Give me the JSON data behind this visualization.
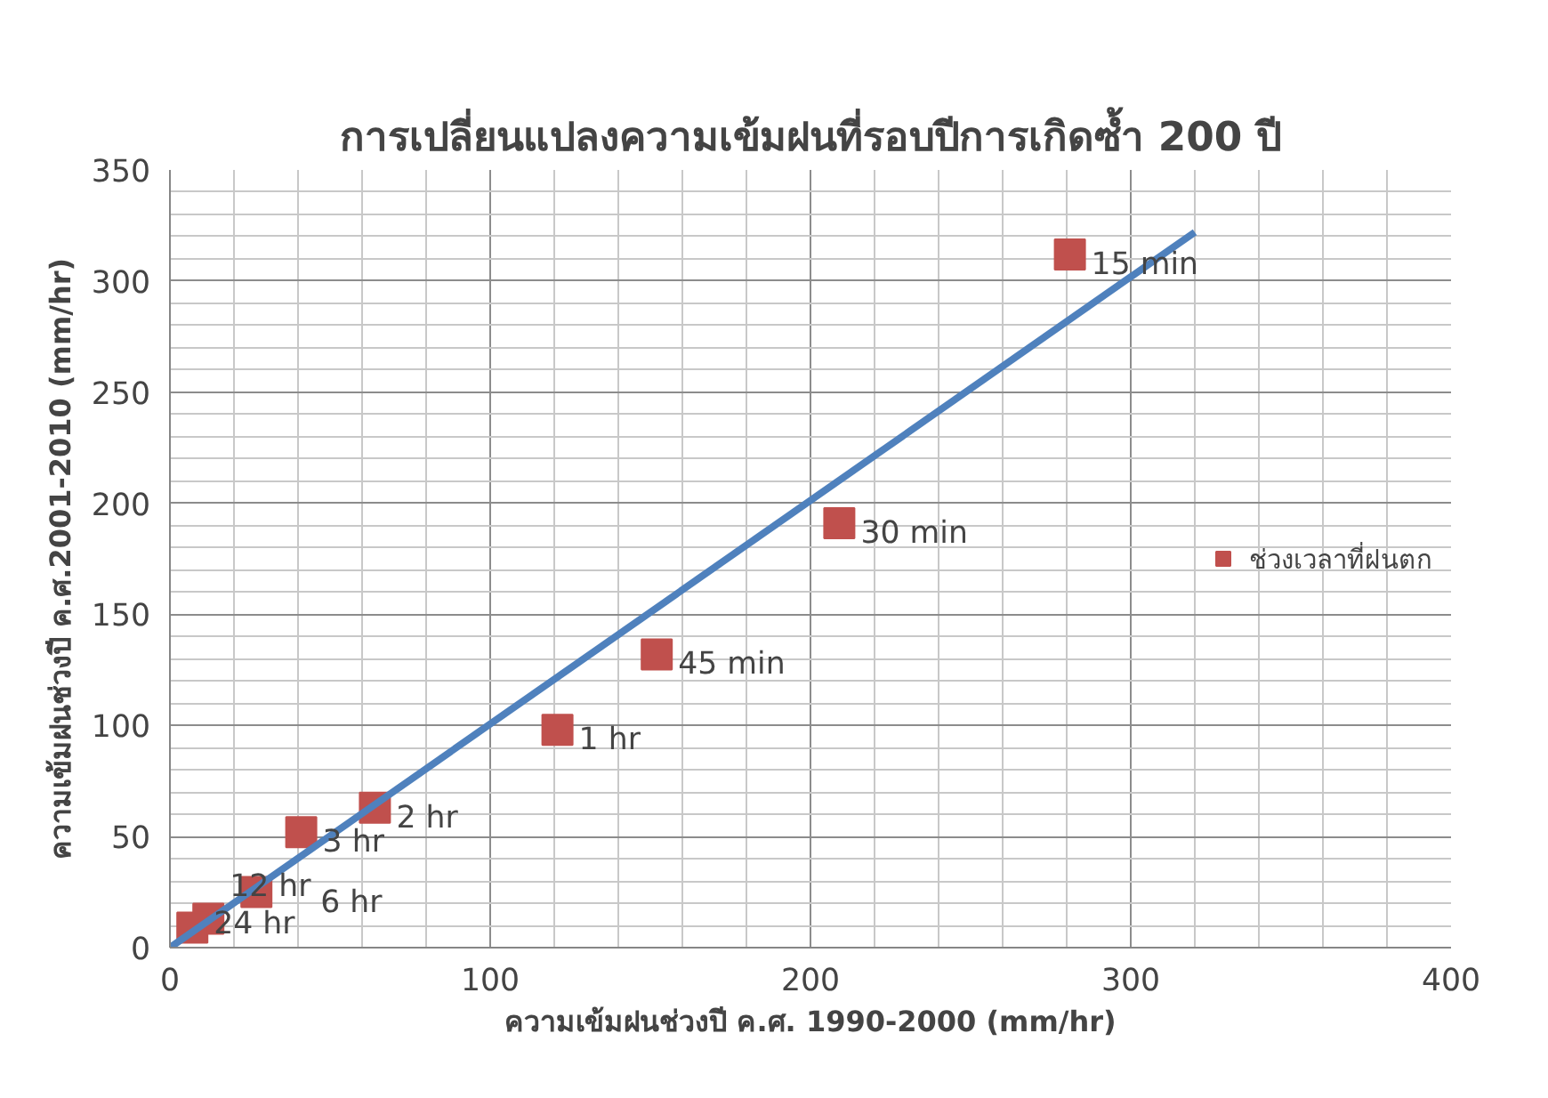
{
  "chart_data": {
    "type": "scatter",
    "title": "การเปลี่ยนแปลงความเข้มฝนที่รอบปีการเกิดซ้ำ 200 ปี",
    "xlabel": "ความเข้มฝนช่วงปี ค.ศ. 1990-2000 (mm/hr)",
    "ylabel": "ความเข้มฝนช่วงปี ค.ศ.2001-2010 (mm/hr)",
    "x": [
      281,
      209,
      152,
      121,
      64,
      41,
      27,
      12,
      7
    ],
    "series": [
      {
        "name": "ช่วงเวลาที่ฝนตก",
        "color": "#c0504d",
        "marker": "square",
        "values": [
          312,
          191,
          132,
          98,
          63,
          52,
          25,
          13,
          9
        ]
      },
      {
        "type": "line",
        "color": "#4f81bd",
        "x": [
          0,
          320
        ],
        "values": [
          0,
          322
        ]
      }
    ],
    "annotations": [
      {
        "text": "15 min",
        "x": 281,
        "y": 312
      },
      {
        "text": "30 min",
        "x": 209,
        "y": 191
      },
      {
        "text": "45 min",
        "x": 152,
        "y": 132
      },
      {
        "text": "1 hr",
        "x": 121,
        "y": 98
      },
      {
        "text": "2 hr",
        "x": 64,
        "y": 63
      },
      {
        "text": "3 hr",
        "x": 41,
        "y": 52
      },
      {
        "text": "6 hr",
        "x": 27,
        "y": 25
      },
      {
        "text": "12 hr",
        "x": 12,
        "y": 13
      },
      {
        "text": "24 hr",
        "x": 7,
        "y": 9
      }
    ],
    "xlim": [
      0,
      400
    ],
    "ylim": [
      0,
      350
    ],
    "xticks": [
      0,
      100,
      200,
      300,
      400
    ],
    "yticks": [
      0,
      50,
      100,
      150,
      200,
      250,
      300,
      350
    ],
    "grid": true,
    "legend": "right"
  }
}
